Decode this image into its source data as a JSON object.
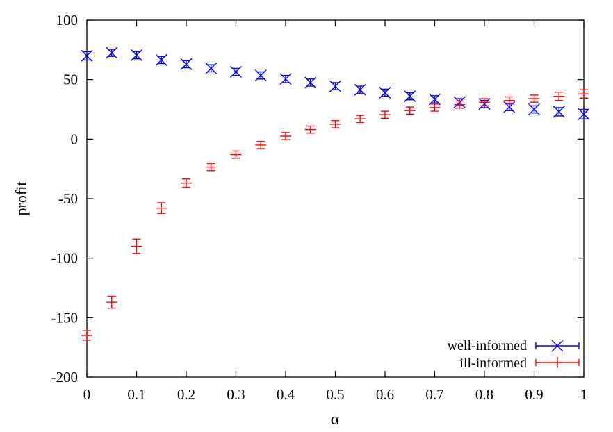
{
  "chart_data": {
    "type": "scatter",
    "title": "",
    "xlabel": "α",
    "ylabel": "profit",
    "xlim": [
      0,
      1
    ],
    "ylim": [
      -200,
      100
    ],
    "xticks": [
      "0",
      "0.1",
      "0.2",
      "0.3",
      "0.4",
      "0.5",
      "0.6",
      "0.7",
      "0.8",
      "0.9",
      "1"
    ],
    "yticks": [
      "-200",
      "-150",
      "-100",
      "-50",
      "0",
      "50",
      "100"
    ],
    "grid": false,
    "legend_position": "bottom-right",
    "series": [
      {
        "name": "well-informed",
        "color": "#0000ff",
        "marker": "x-with-errorbars",
        "x": [
          0,
          0.05,
          0.1,
          0.15,
          0.2,
          0.25,
          0.3,
          0.35,
          0.4,
          0.45,
          0.5,
          0.55,
          0.6,
          0.65,
          0.7,
          0.75,
          0.8,
          0.85,
          0.9,
          0.95,
          1
        ],
        "y": [
          70,
          72.5,
          70.5,
          66.5,
          63,
          59.5,
          56.5,
          53.5,
          50.5,
          47.5,
          44.5,
          41.5,
          39,
          36,
          33.5,
          31,
          29.5,
          27,
          25,
          23,
          21
        ],
        "err": [
          3.5,
          3,
          3,
          3,
          3,
          3,
          3,
          3,
          3,
          3,
          3,
          3,
          3,
          3,
          3,
          3,
          3,
          3,
          3,
          3.5,
          4
        ]
      },
      {
        "name": "ill-informed",
        "color": "#ff0000",
        "marker": "plus-with-errorbars",
        "x": [
          0,
          0.05,
          0.1,
          0.15,
          0.2,
          0.25,
          0.3,
          0.35,
          0.4,
          0.45,
          0.5,
          0.55,
          0.6,
          0.65,
          0.7,
          0.75,
          0.8,
          0.85,
          0.9,
          0.95,
          1
        ],
        "y": [
          -165,
          -137,
          -90,
          -58,
          -37,
          -23.5,
          -13,
          -5,
          2.5,
          8,
          12.5,
          17,
          20.5,
          24,
          26.5,
          29,
          31,
          32.5,
          34,
          36,
          38
        ],
        "err": [
          4,
          5,
          6,
          4.5,
          3.5,
          3,
          3,
          3,
          3,
          3,
          3,
          3,
          3,
          3,
          3,
          3,
          3,
          3,
          3,
          3.5,
          3.5
        ]
      }
    ]
  }
}
